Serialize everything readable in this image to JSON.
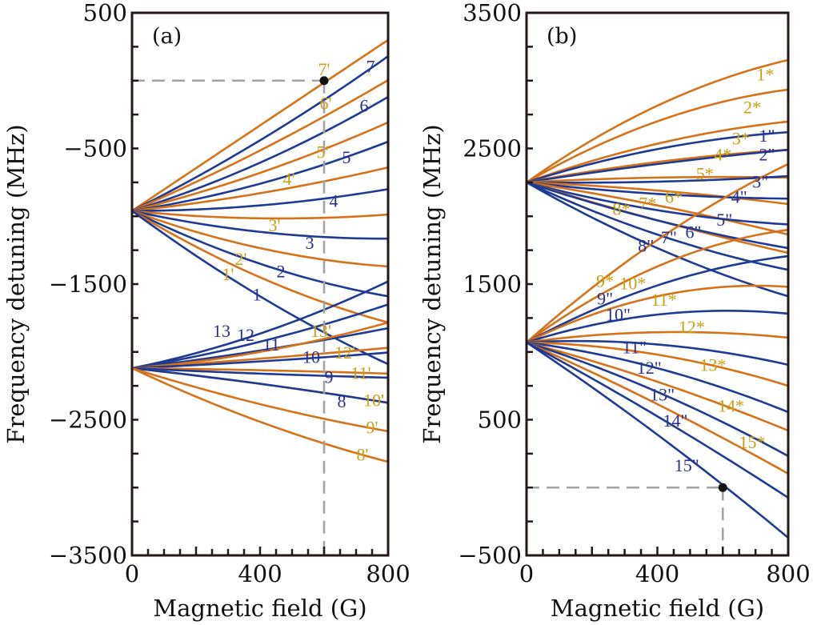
{
  "chart_data": [
    {
      "type": "line",
      "panel_label": "(a)",
      "xlabel": "Magnetic field (G)",
      "ylabel": "Frequency detuning (MHz)",
      "xlim": [
        0,
        800
      ],
      "ylim": [
        -3500,
        500
      ],
      "x_ticks": [
        0,
        400,
        800
      ],
      "x_tick_labels": [
        "0",
        "400",
        "800"
      ],
      "y_ticks": [
        500,
        -500,
        -1500,
        -2500,
        -3500
      ],
      "y_tick_labels": [
        "500",
        "−500",
        "−1500",
        "−2500",
        "−3500"
      ],
      "x_minor_step": 50,
      "y_minor_step": 250,
      "grid": false,
      "marker": {
        "x": 600,
        "y": 0,
        "dashed_guides": true
      },
      "colors": {
        "blue": "#1f3a93",
        "orange": "#d4731a",
        "label_gold": "#c9a012",
        "label_blue": "#2a2f8f",
        "guide": "#a3a3a3"
      },
      "x": [
        0,
        400,
        800
      ],
      "series": [
        {
          "name": "7'",
          "color": "orange",
          "values": [
            -960,
            -330,
            300
          ],
          "label_at": [
            600,
            70
          ]
        },
        {
          "name": "7",
          "color": "blue",
          "values": [
            -960,
            -440,
            180
          ],
          "label_at": [
            745,
            90
          ]
        },
        {
          "name": "6'",
          "color": "orange",
          "values": [
            -960,
            -515,
            4
          ],
          "label_at": [
            605,
            -180
          ]
        },
        {
          "name": "6",
          "color": "blue",
          "values": [
            -960,
            -605,
            -120
          ],
          "label_at": [
            725,
            -200
          ]
        },
        {
          "name": "5'",
          "color": "orange",
          "values": [
            -960,
            -680,
            -308
          ],
          "label_at": [
            595,
            -540
          ]
        },
        {
          "name": "5",
          "color": "blue",
          "values": [
            -960,
            -760,
            -450
          ],
          "label_at": [
            670,
            -580
          ]
        },
        {
          "name": "4'",
          "color": "orange",
          "values": [
            -960,
            -830,
            -640
          ],
          "label_at": [
            490,
            -740
          ]
        },
        {
          "name": "4",
          "color": "blue",
          "values": [
            -960,
            -920,
            -800
          ],
          "label_at": [
            630,
            -900
          ]
        },
        {
          "name": "3'",
          "color": "orange",
          "values": [
            -960,
            -1015,
            -987
          ],
          "label_at": [
            445,
            -1080
          ]
        },
        {
          "name": "3",
          "color": "blue",
          "values": [
            -960,
            -1115,
            -1165
          ],
          "label_at": [
            555,
            -1210
          ]
        },
        {
          "name": "2'",
          "color": "orange",
          "values": [
            -960,
            -1235,
            -1370
          ],
          "label_at": [
            340,
            -1330
          ]
        },
        {
          "name": "2",
          "color": "blue",
          "values": [
            -960,
            -1350,
            -1590
          ],
          "label_at": [
            465,
            -1420
          ]
        },
        {
          "name": "1'",
          "color": "orange",
          "values": [
            -960,
            -1450,
            -1783
          ],
          "label_at": [
            300,
            -1440
          ]
        },
        {
          "name": "1",
          "color": "blue",
          "values": [
            -960,
            -1590,
            -2090
          ],
          "label_at": [
            390,
            -1590
          ]
        },
        {
          "name": "13",
          "color": "blue",
          "values": [
            -2120,
            -1865,
            -1480
          ],
          "label_at": [
            280,
            -1860
          ]
        },
        {
          "name": "12",
          "color": "blue",
          "values": [
            -2120,
            -1925,
            -1650
          ],
          "label_at": [
            355,
            -1890
          ]
        },
        {
          "name": "11",
          "color": "blue",
          "values": [
            -2120,
            -1990,
            -1825
          ],
          "label_at": [
            435,
            -1960
          ]
        },
        {
          "name": "13'",
          "color": "orange",
          "values": [
            -2120,
            -2000,
            -1783
          ],
          "label_at": [
            590,
            -1860
          ]
        },
        {
          "name": "12'",
          "color": "orange",
          "values": [
            -2120,
            -2050,
            -1970
          ],
          "label_at": [
            665,
            -2020
          ]
        },
        {
          "name": "10",
          "color": "blue",
          "values": [
            -2120,
            -2070,
            -2005
          ],
          "label_at": [
            560,
            -2050
          ]
        },
        {
          "name": "11'",
          "color": "orange",
          "values": [
            -2120,
            -2135,
            -2160
          ],
          "label_at": [
            715,
            -2170
          ]
        },
        {
          "name": "9",
          "color": "blue",
          "values": [
            -2120,
            -2160,
            -2190
          ],
          "label_at": [
            615,
            -2200
          ]
        },
        {
          "name": "10'",
          "color": "orange",
          "values": [
            -2120,
            -2235,
            -2375
          ],
          "label_at": [
            755,
            -2370
          ]
        },
        {
          "name": "8",
          "color": "blue",
          "values": [
            -2120,
            -2235,
            -2375
          ],
          "label_at": [
            655,
            -2380
          ]
        },
        {
          "name": "9'",
          "color": "orange",
          "values": [
            -2120,
            -2385,
            -2585
          ],
          "label_at": [
            750,
            -2570
          ]
        },
        {
          "name": "8'",
          "color": "orange",
          "values": [
            -2120,
            -2515,
            -2810
          ],
          "label_at": [
            720,
            -2770
          ]
        }
      ]
    },
    {
      "type": "line",
      "panel_label": "(b)",
      "xlabel": "Magnetic field (G)",
      "ylabel": "Frequency detuning (MHz)",
      "xlim": [
        0,
        800
      ],
      "ylim": [
        -500,
        3500
      ],
      "x_ticks": [
        0,
        400,
        800
      ],
      "x_tick_labels": [
        "0",
        "400",
        "800"
      ],
      "y_ticks": [
        3500,
        2500,
        1500,
        500,
        -500
      ],
      "y_tick_labels": [
        "3500",
        "2500",
        "1500",
        "500",
        "−500"
      ],
      "x_minor_step": 50,
      "y_minor_step": 250,
      "grid": false,
      "marker": {
        "x": 600,
        "y": 0,
        "dashed_guides": true
      },
      "colors": {
        "blue": "#1f3a93",
        "orange": "#d4731a",
        "label_gold": "#c9a012",
        "label_blue": "#2a2f8f",
        "guide": "#a3a3a3"
      },
      "x": [
        0,
        400,
        800
      ],
      "series": [
        {
          "name": "1*",
          "color": "orange",
          "values": [
            2250,
            2815,
            3152
          ],
          "label_at": [
            730,
            3030
          ]
        },
        {
          "name": "2*",
          "color": "orange",
          "values": [
            2250,
            2700,
            2934
          ],
          "label_at": [
            690,
            2790
          ]
        },
        {
          "name": "3*",
          "color": "orange",
          "values": [
            2250,
            2535,
            2698
          ],
          "label_at": [
            655,
            2560
          ]
        },
        {
          "name": "1''",
          "color": "blue",
          "values": [
            2250,
            2495,
            2620
          ],
          "label_at": [
            735,
            2580
          ]
        },
        {
          "name": "4*",
          "color": "orange",
          "values": [
            2250,
            2400,
            2490
          ],
          "label_at": [
            600,
            2440
          ]
        },
        {
          "name": "2''",
          "color": "blue",
          "values": [
            2250,
            2385,
            2490
          ],
          "label_at": [
            735,
            2440
          ]
        },
        {
          "name": "5*",
          "color": "orange",
          "values": [
            2250,
            2285,
            2285
          ],
          "label_at": [
            545,
            2300
          ]
        },
        {
          "name": "3''",
          "color": "blue",
          "values": [
            2250,
            2255,
            2296
          ],
          "label_at": [
            715,
            2240
          ]
        },
        {
          "name": "6*",
          "color": "orange",
          "values": [
            2250,
            2190,
            2090
          ],
          "label_at": [
            450,
            2130
          ]
        },
        {
          "name": "4''",
          "color": "blue",
          "values": [
            2250,
            2165,
            2130
          ],
          "label_at": [
            650,
            2130
          ]
        },
        {
          "name": "7*",
          "color": "orange",
          "values": [
            2250,
            2080,
            1865
          ],
          "label_at": [
            370,
            2080
          ]
        },
        {
          "name": "5''",
          "color": "blue",
          "values": [
            2250,
            2045,
            1940
          ],
          "label_at": [
            605,
            1960
          ]
        },
        {
          "name": "8*",
          "color": "orange",
          "values": [
            2250,
            1970,
            1730
          ],
          "label_at": [
            290,
            2040
          ]
        },
        {
          "name": "6''",
          "color": "blue",
          "values": [
            2250,
            1970,
            1765
          ],
          "label_at": [
            510,
            1870
          ]
        },
        {
          "name": "7''",
          "color": "blue",
          "values": [
            2250,
            1865,
            1605
          ],
          "label_at": [
            435,
            1830
          ]
        },
        {
          "name": "8''",
          "color": "blue",
          "values": [
            2250,
            1765,
            1410
          ],
          "label_at": [
            365,
            1770
          ]
        },
        {
          "name": "9*",
          "color": "orange",
          "values": [
            1070,
            1825,
            2385
          ],
          "label_at": [
            240,
            1510
          ]
        },
        {
          "name": "10*",
          "color": "orange",
          "values": [
            1070,
            1630,
            1900
          ],
          "label_at": [
            325,
            1490
          ]
        },
        {
          "name": "9''",
          "color": "blue",
          "values": [
            1070,
            1490,
            1706
          ],
          "label_at": [
            240,
            1380
          ]
        },
        {
          "name": "11*",
          "color": "orange",
          "values": [
            1070,
            1410,
            1480
          ],
          "label_at": [
            420,
            1370
          ]
        },
        {
          "name": "10''",
          "color": "blue",
          "values": [
            1070,
            1275,
            1282
          ],
          "label_at": [
            280,
            1260
          ]
        },
        {
          "name": "12*",
          "color": "orange",
          "values": [
            1070,
            1145,
            1105
          ],
          "label_at": [
            505,
            1170
          ]
        },
        {
          "name": "11''",
          "color": "blue",
          "values": [
            1070,
            1055,
            905
          ],
          "label_at": [
            330,
            1020
          ]
        },
        {
          "name": "13*",
          "color": "orange",
          "values": [
            1070,
            980,
            750
          ],
          "label_at": [
            570,
            890
          ]
        },
        {
          "name": "12''",
          "color": "blue",
          "values": [
            1070,
            880,
            556
          ],
          "label_at": [
            375,
            870
          ]
        },
        {
          "name": "14*",
          "color": "orange",
          "values": [
            1070,
            780,
            420
          ],
          "label_at": [
            625,
            590
          ]
        },
        {
          "name": "13''",
          "color": "blue",
          "values": [
            1070,
            705,
            232
          ],
          "label_at": [
            415,
            670
          ]
        },
        {
          "name": "15*",
          "color": "orange",
          "values": [
            1070,
            615,
            102
          ],
          "label_at": [
            690,
            320
          ]
        },
        {
          "name": "14''",
          "color": "blue",
          "values": [
            1070,
            525,
            -75
          ],
          "label_at": [
            455,
            480
          ]
        },
        {
          "name": "15''",
          "color": "blue",
          "values": [
            1070,
            390,
            -370
          ],
          "label_at": [
            490,
            150
          ]
        }
      ]
    }
  ]
}
